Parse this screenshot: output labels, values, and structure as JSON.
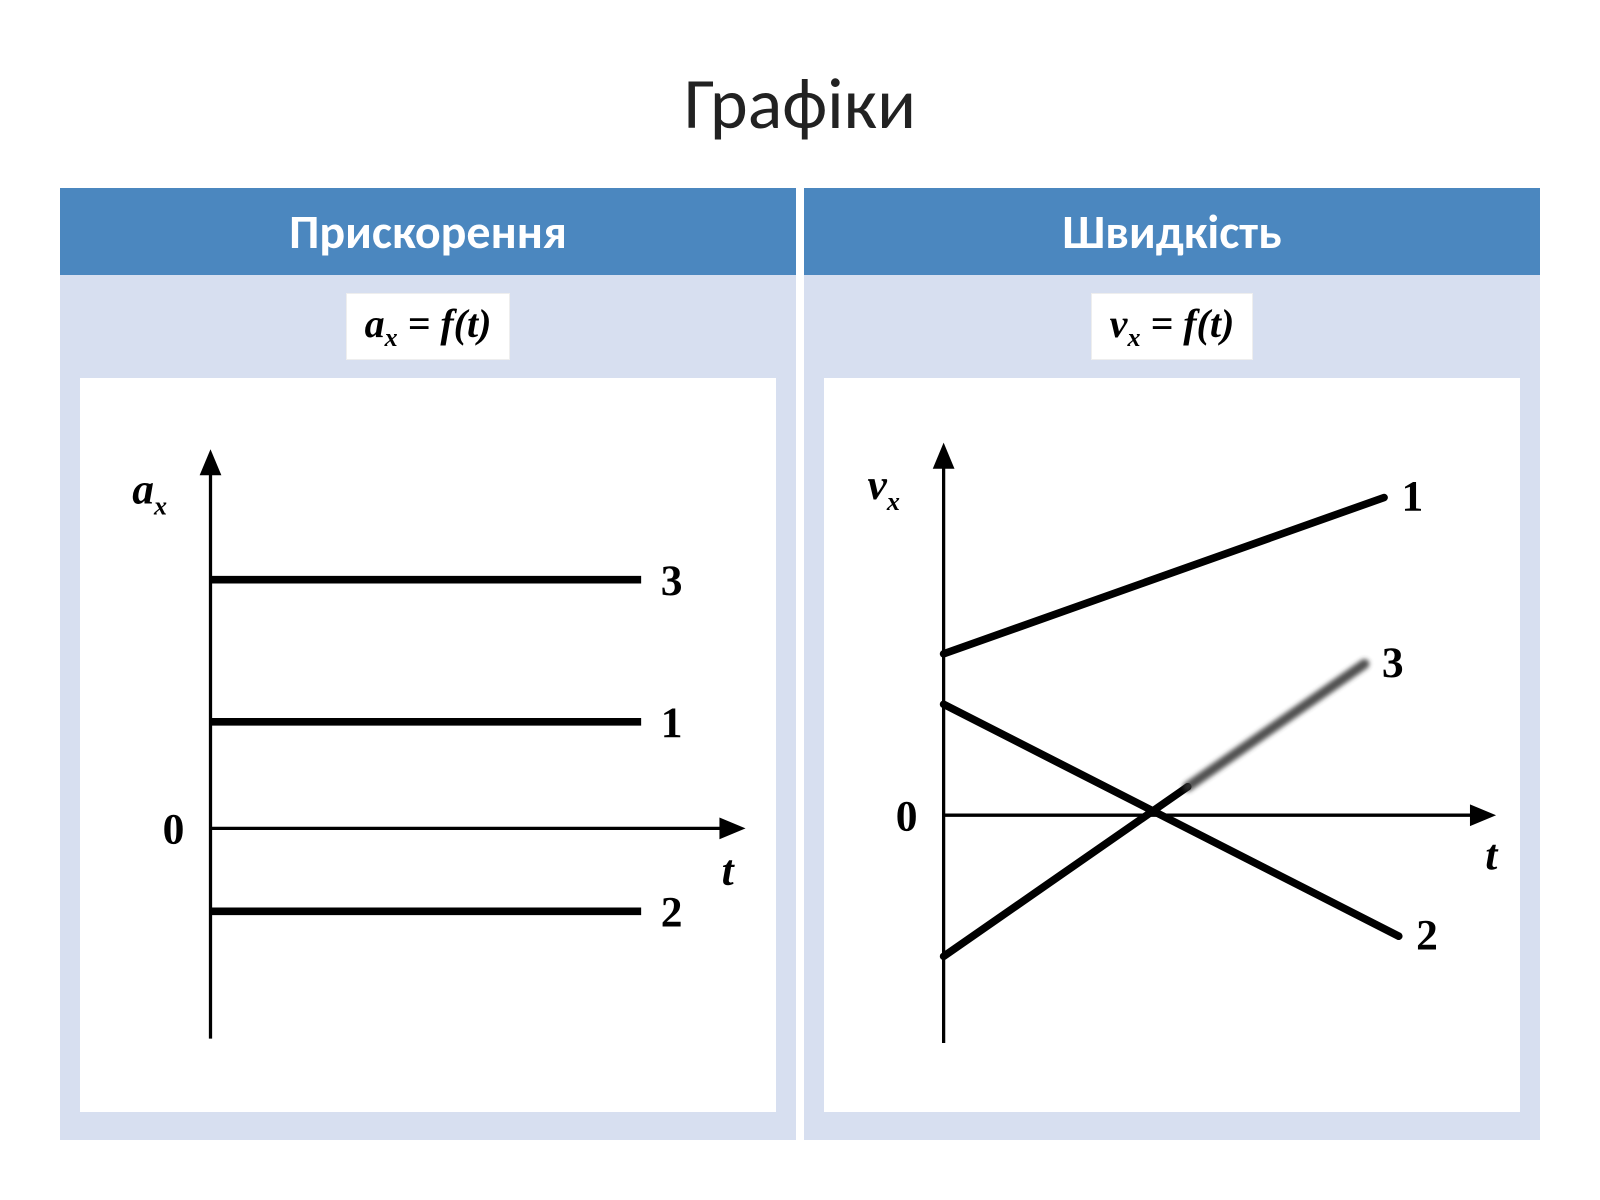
{
  "title": "Графіки",
  "colors": {
    "header_bg": "#4b87bf",
    "header_text": "#ffffff",
    "body_bg": "#d7dff0",
    "chart_bg": "#ffffff",
    "axis": "#000000",
    "line": "#000000",
    "text": "#000000"
  },
  "left": {
    "header": "Прискорення",
    "formula_lhs": "a",
    "formula_sub": "x",
    "formula_rhs": " = f(t)",
    "chart": {
      "type": "line",
      "y_axis_label": "a",
      "y_axis_sub": "x",
      "x_axis_label": "t",
      "origin_label": "0",
      "xlim": [
        0,
        10
      ],
      "ylim": [
        -3,
        6
      ],
      "axis_stroke_width": 3,
      "line_stroke_width": 7,
      "label_fontsize": 40,
      "series": [
        {
          "label": "3",
          "y": 4.2,
          "x_start": 0,
          "x_end": 9
        },
        {
          "label": "1",
          "y": 1.8,
          "x_start": 0,
          "x_end": 9
        },
        {
          "label": "2",
          "y": -1.4,
          "x_start": 0,
          "x_end": 9
        }
      ]
    }
  },
  "right": {
    "header": "Швидкість",
    "formula_lhs": "v",
    "formula_sub": "x",
    "formula_rhs": " = f(t)",
    "chart": {
      "type": "line",
      "y_axis_label": "v",
      "y_axis_sub": "x",
      "x_axis_label": "t",
      "origin_label": "0",
      "xlim": [
        0,
        10
      ],
      "ylim": [
        -4,
        7
      ],
      "axis_stroke_width": 3,
      "line_stroke_width": 7,
      "label_fontsize": 40,
      "series": [
        {
          "label": "1",
          "x1": 0,
          "y1": 3.2,
          "x2": 9,
          "y2": 6.3,
          "blur": false
        },
        {
          "label": "2",
          "x1": 0,
          "y1": 2.2,
          "x2": 9.3,
          "y2": -2.4,
          "blur": false
        },
        {
          "label": "3",
          "x1": 0,
          "y1": -2.8,
          "x2": 8.6,
          "y2": 3.0,
          "blur": true
        }
      ]
    }
  }
}
